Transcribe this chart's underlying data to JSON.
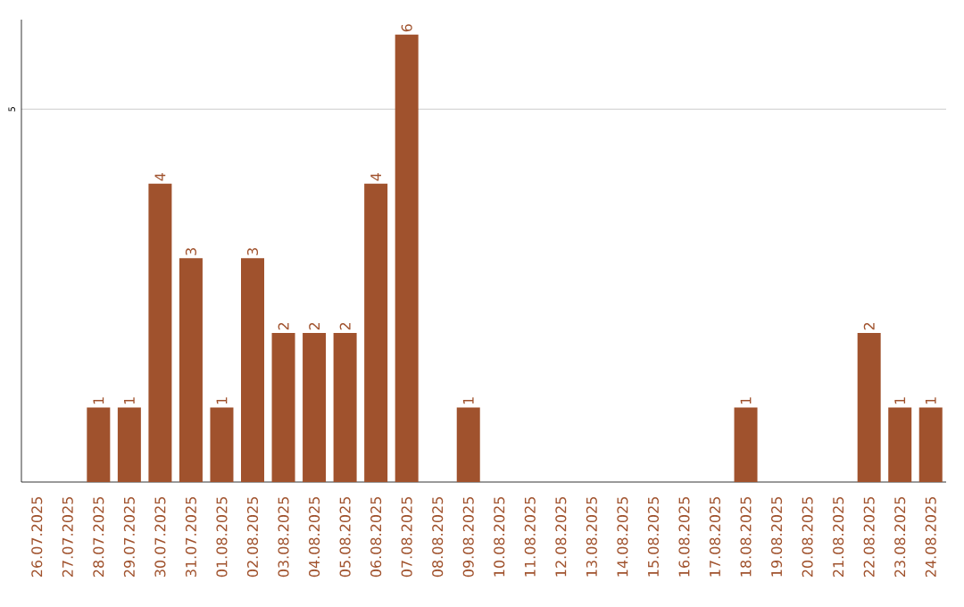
{
  "chart_data": {
    "type": "bar",
    "categories": [
      "26.07.2025",
      "27.07.2025",
      "28.07.2025",
      "29.07.2025",
      "30.07.2025",
      "31.07.2025",
      "01.08.2025",
      "02.08.2025",
      "03.08.2025",
      "04.08.2025",
      "05.08.2025",
      "06.08.2025",
      "07.08.2025",
      "08.08.2025",
      "09.08.2025",
      "10.08.2025",
      "11.08.2025",
      "12.08.2025",
      "13.08.2025",
      "14.08.2025",
      "15.08.2025",
      "16.08.2025",
      "17.08.2025",
      "18.08.2025",
      "19.08.2025",
      "20.08.2025",
      "21.08.2025",
      "22.08.2025",
      "23.08.2025",
      "24.08.2025"
    ],
    "values": [
      0,
      0,
      1,
      1,
      4,
      3,
      1,
      3,
      2,
      2,
      2,
      4,
      6,
      0,
      1,
      0,
      0,
      0,
      0,
      0,
      0,
      0,
      0,
      1,
      0,
      0,
      0,
      2,
      1,
      1
    ],
    "value_labels": [
      null,
      null,
      "1",
      "1",
      "4",
      "3",
      "1",
      "3",
      "2",
      "2",
      "2",
      "4",
      "6",
      null,
      "1",
      null,
      null,
      null,
      null,
      null,
      null,
      null,
      null,
      "1",
      null,
      null,
      null,
      "2",
      "1",
      "1"
    ],
    "color": "#a0522d",
    "ylim": [
      0,
      6.2
    ],
    "yticks": [
      5
    ],
    "grid": "y"
  }
}
